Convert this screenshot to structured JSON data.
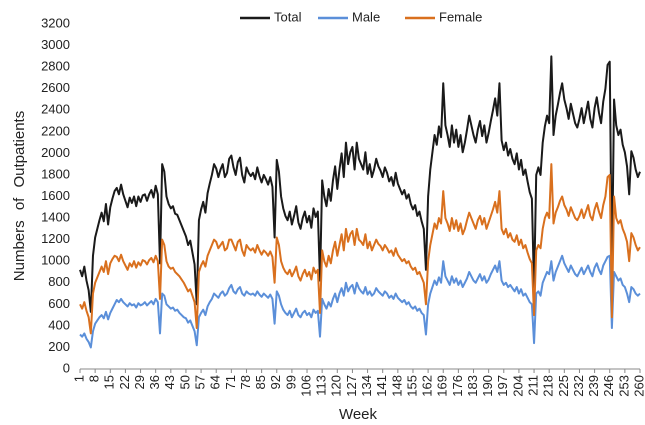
{
  "chart_data": {
    "type": "line",
    "x_label": "Week",
    "y_label": "Numbers of Outpatients",
    "x": [
      1,
      2,
      3,
      4,
      5,
      6,
      7,
      8,
      9,
      10,
      11,
      12,
      13,
      14,
      15,
      16,
      17,
      18,
      19,
      20,
      21,
      22,
      23,
      24,
      25,
      26,
      27,
      28,
      29,
      30,
      31,
      32,
      33,
      34,
      35,
      36,
      37,
      38,
      39,
      40,
      41,
      42,
      43,
      44,
      45,
      46,
      47,
      48,
      49,
      50,
      51,
      52,
      53,
      54,
      55,
      56,
      57,
      58,
      59,
      60,
      61,
      62,
      63,
      64,
      65,
      66,
      67,
      68,
      69,
      70,
      71,
      72,
      73,
      74,
      75,
      76,
      77,
      78,
      79,
      80,
      81,
      82,
      83,
      84,
      85,
      86,
      87,
      88,
      89,
      90,
      91,
      92,
      93,
      94,
      95,
      96,
      97,
      98,
      99,
      100,
      101,
      102,
      103,
      104,
      105,
      106,
      107,
      108,
      109,
      110,
      111,
      112,
      113,
      114,
      115,
      116,
      117,
      118,
      119,
      120,
      121,
      122,
      123,
      124,
      125,
      126,
      127,
      128,
      129,
      130,
      131,
      132,
      133,
      134,
      135,
      136,
      137,
      138,
      139,
      140,
      141,
      142,
      143,
      144,
      145,
      146,
      147,
      148,
      149,
      150,
      151,
      152,
      153,
      154,
      155,
      156,
      157,
      158,
      159,
      160,
      161,
      162,
      163,
      164,
      165,
      166,
      167,
      168,
      169,
      170,
      171,
      172,
      173,
      174,
      175,
      176,
      177,
      178,
      179,
      180,
      181,
      182,
      183,
      184,
      185,
      186,
      187,
      188,
      189,
      190,
      191,
      192,
      193,
      194,
      195,
      196,
      197,
      198,
      199,
      200,
      201,
      202,
      203,
      204,
      205,
      206,
      207,
      208,
      209,
      210,
      211,
      212,
      213,
      214,
      215,
      216,
      217,
      218,
      219,
      220,
      221,
      222,
      223,
      224,
      225,
      226,
      227,
      228,
      229,
      230,
      231,
      232,
      233,
      234,
      235,
      236,
      237,
      238,
      239,
      240,
      241,
      242,
      243,
      244,
      245,
      246,
      247,
      248,
      249,
      250,
      251,
      252,
      253,
      254,
      255,
      256,
      257,
      258,
      259,
      260
    ],
    "series": [
      {
        "name": "Total",
        "color": "#1a1a1a",
        "values": [
          920,
          860,
          950,
          820,
          730,
          530,
          1050,
          1220,
          1300,
          1380,
          1450,
          1370,
          1530,
          1340,
          1500,
          1580,
          1650,
          1680,
          1620,
          1710,
          1620,
          1560,
          1500,
          1590,
          1540,
          1600,
          1510,
          1600,
          1550,
          1610,
          1620,
          1560,
          1620,
          1660,
          1590,
          1700,
          1620,
          980,
          1900,
          1830,
          1600,
          1530,
          1490,
          1510,
          1440,
          1430,
          1380,
          1330,
          1280,
          1230,
          1150,
          1190,
          1080,
          970,
          600,
          1380,
          1480,
          1550,
          1450,
          1630,
          1720,
          1800,
          1900,
          1860,
          1780,
          1850,
          1900,
          1780,
          1820,
          1950,
          1980,
          1870,
          1800,
          1920,
          1960,
          1800,
          1730,
          1870,
          1820,
          1790,
          1820,
          1760,
          1870,
          1790,
          1730,
          1800,
          1760,
          1710,
          1780,
          1690,
          1220,
          1940,
          1830,
          1600,
          1490,
          1420,
          1380,
          1460,
          1340,
          1420,
          1510,
          1360,
          1300,
          1400,
          1460,
          1360,
          1420,
          1310,
          1490,
          1410,
          1460,
          820,
          1750,
          1600,
          1510,
          1670,
          1560,
          1750,
          1880,
          1670,
          1850,
          2000,
          1780,
          2100,
          1900,
          2010,
          2060,
          1850,
          2100,
          1950,
          1900,
          1850,
          2010,
          1810,
          1900,
          1780,
          1850,
          1950,
          1880,
          1840,
          1780,
          1870,
          1820,
          1740,
          1780,
          1700,
          1820,
          1720,
          1670,
          1620,
          1660,
          1580,
          1620,
          1530,
          1480,
          1520,
          1420,
          1460,
          1370,
          1300,
          920,
          1600,
          1850,
          2010,
          2170,
          2080,
          2250,
          2150,
          2650,
          2260,
          2170,
          2060,
          2260,
          2100,
          2220,
          2060,
          2170,
          2010,
          2100,
          2220,
          2350,
          2260,
          2170,
          2100,
          2220,
          2300,
          2160,
          2260,
          2100,
          2190,
          2300,
          2400,
          2510,
          2350,
          2650,
          2120,
          2030,
          2100,
          1980,
          2040,
          1950,
          1900,
          2000,
          1850,
          1940,
          1800,
          1850,
          1740,
          1640,
          1580,
          740,
          1800,
          1870,
          1800,
          2100,
          2250,
          2350,
          2280,
          2900,
          2170,
          2350,
          2450,
          2560,
          2650,
          2500,
          2420,
          2320,
          2460,
          2370,
          2280,
          2240,
          2320,
          2420,
          2280,
          2380,
          2480,
          2320,
          2240,
          2420,
          2520,
          2380,
          2280,
          2480,
          2600,
          2820,
          2850,
          860,
          2500,
          2260,
          2170,
          2220,
          2080,
          2010,
          1880,
          1620,
          2020,
          1960,
          1850,
          1780,
          1830
        ]
      },
      {
        "name": "Male",
        "color": "#5b8fd9",
        "values": [
          320,
          300,
          330,
          280,
          250,
          200,
          350,
          420,
          450,
          480,
          500,
          470,
          530,
          460,
          520,
          560,
          600,
          640,
          620,
          650,
          620,
          600,
          580,
          610,
          590,
          600,
          570,
          610,
          590,
          600,
          620,
          590,
          610,
          630,
          600,
          650,
          620,
          330,
          700,
          680,
          600,
          580,
          560,
          570,
          540,
          550,
          520,
          500,
          480,
          470,
          430,
          450,
          400,
          350,
          220,
          480,
          520,
          550,
          500,
          580,
          620,
          650,
          700,
          680,
          660,
          700,
          720,
          680,
          700,
          750,
          780,
          720,
          700,
          740,
          760,
          700,
          680,
          720,
          700,
          690,
          700,
          680,
          720,
          690,
          670,
          700,
          680,
          660,
          690,
          650,
          420,
          720,
          680,
          600,
          550,
          520,
          500,
          540,
          480,
          520,
          560,
          500,
          480,
          520,
          540,
          500,
          520,
          480,
          550,
          520,
          540,
          300,
          650,
          600,
          560,
          620,
          580,
          650,
          700,
          620,
          700,
          750,
          680,
          800,
          720,
          760,
          780,
          700,
          800,
          750,
          720,
          700,
          760,
          690,
          720,
          680,
          700,
          750,
          720,
          700,
          680,
          720,
          700,
          660,
          680,
          650,
          700,
          660,
          640,
          620,
          640,
          600,
          620,
          580,
          560,
          580,
          540,
          560,
          520,
          500,
          320,
          600,
          700,
          760,
          820,
          780,
          850,
          800,
          1000,
          860,
          820,
          780,
          860,
          800,
          840,
          780,
          820,
          760,
          800,
          840,
          900,
          860,
          820,
          800,
          840,
          880,
          820,
          860,
          800,
          830,
          880,
          920,
          960,
          900,
          1000,
          820,
          780,
          800,
          760,
          780,
          750,
          720,
          760,
          700,
          740,
          680,
          700,
          660,
          620,
          600,
          240,
          700,
          720,
          680,
          800,
          850,
          900,
          880,
          1000,
          820,
          900,
          950,
          1000,
          1050,
          980,
          940,
          900,
          960,
          920,
          880,
          860,
          900,
          940,
          880,
          920,
          960,
          900,
          860,
          940,
          980,
          920,
          880,
          960,
          1000,
          1040,
          1050,
          380,
          900,
          860,
          820,
          840,
          780,
          760,
          700,
          620,
          760,
          740,
          700,
          680,
          700
        ]
      },
      {
        "name": "Female",
        "color": "#d9701e",
        "values": [
          600,
          560,
          620,
          540,
          480,
          330,
          700,
          800,
          850,
          900,
          950,
          900,
          1000,
          880,
          980,
          1020,
          1050,
          1040,
          1000,
          1060,
          1000,
          960,
          920,
          980,
          950,
          1000,
          940,
          990,
          960,
          1010,
          1000,
          970,
          1010,
          1030,
          990,
          1050,
          1000,
          650,
          1200,
          1150,
          1000,
          950,
          930,
          940,
          900,
          880,
          860,
          830,
          800,
          760,
          720,
          740,
          680,
          620,
          380,
          900,
          960,
          1000,
          950,
          1050,
          1100,
          1150,
          1200,
          1180,
          1120,
          1150,
          1180,
          1100,
          1120,
          1200,
          1200,
          1150,
          1100,
          1180,
          1200,
          1100,
          1050,
          1150,
          1120,
          1100,
          1120,
          1080,
          1150,
          1100,
          1060,
          1100,
          1080,
          1050,
          1090,
          1040,
          800,
          1220,
          1150,
          1000,
          940,
          900,
          880,
          920,
          860,
          900,
          950,
          860,
          820,
          880,
          920,
          860,
          900,
          830,
          940,
          890,
          920,
          520,
          1100,
          1000,
          950,
          1050,
          980,
          1100,
          1180,
          1050,
          1150,
          1250,
          1100,
          1300,
          1180,
          1250,
          1280,
          1150,
          1300,
          1200,
          1180,
          1150,
          1250,
          1120,
          1180,
          1100,
          1150,
          1200,
          1160,
          1140,
          1100,
          1150,
          1120,
          1080,
          1100,
          1050,
          1120,
          1060,
          1030,
          1000,
          1020,
          980,
          1000,
          950,
          920,
          940,
          880,
          900,
          850,
          800,
          600,
          1000,
          1150,
          1250,
          1350,
          1300,
          1400,
          1350,
          1650,
          1400,
          1350,
          1280,
          1400,
          1300,
          1380,
          1280,
          1350,
          1250,
          1300,
          1380,
          1450,
          1400,
          1350,
          1300,
          1380,
          1420,
          1340,
          1400,
          1300,
          1360,
          1420,
          1480,
          1550,
          1450,
          1650,
          1300,
          1250,
          1300,
          1220,
          1260,
          1200,
          1180,
          1240,
          1150,
          1200,
          1120,
          1150,
          1080,
          1020,
          980,
          500,
          1100,
          1150,
          1120,
          1300,
          1400,
          1450,
          1400,
          1900,
          1350,
          1450,
          1500,
          1560,
          1600,
          1520,
          1480,
          1420,
          1500,
          1450,
          1400,
          1380,
          1420,
          1480,
          1400,
          1460,
          1520,
          1420,
          1380,
          1480,
          1540,
          1460,
          1400,
          1520,
          1600,
          1780,
          1800,
          480,
          1600,
          1400,
          1350,
          1380,
          1300,
          1250,
          1180,
          1000,
          1260,
          1220,
          1150,
          1100,
          1130
        ]
      }
    ],
    "xlim": [
      1,
      260
    ],
    "xticks": [
      1,
      8,
      15,
      22,
      29,
      36,
      43,
      50,
      57,
      64,
      71,
      78,
      85,
      92,
      99,
      106,
      113,
      120,
      127,
      134,
      141,
      148,
      155,
      162,
      169,
      176,
      183,
      190,
      197,
      204,
      211,
      218,
      225,
      232,
      239,
      246,
      253,
      260
    ],
    "ylim": [
      0,
      3200
    ],
    "yticks": [
      0,
      200,
      400,
      600,
      800,
      1000,
      1200,
      1400,
      1600,
      1800,
      2000,
      2200,
      2400,
      2600,
      2800,
      3000,
      3200
    ],
    "grid": false,
    "legend": "top"
  }
}
